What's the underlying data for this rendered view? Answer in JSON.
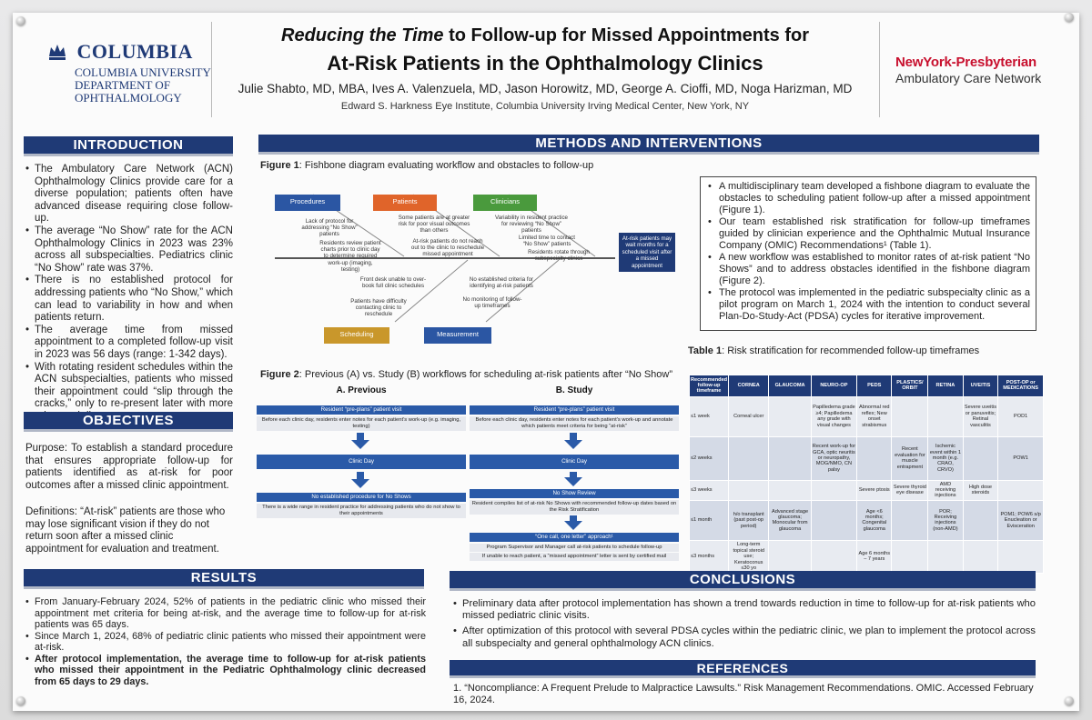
{
  "header": {
    "logo_wordmark": "COLUMBIA",
    "logo_sub": [
      "COLUMBIA UNIVERSITY",
      "DEPARTMENT OF",
      "OPHTHALMOLOGY"
    ],
    "title_line1_italic": "Reducing the Time",
    "title_line1_rest": " to Follow-up for Missed Appointments for",
    "title_line2": "At-Risk Patients in the Ophthalmology Clinics",
    "authors": "Julie Shabto, MD, MBA,  Ives A. Valenzuela, MD, Jason Horowitz, MD, George A. Cioffi, MD, Noga Harizman, MD",
    "affiliation": "Edward S. Harkness Eye Institute, Columbia University Irving Medical Center, New York, NY",
    "partner_name": "NewYork-Presbyterian",
    "partner_sub": "Ambulatory Care Network"
  },
  "introduction": {
    "heading": "INTRODUCTION",
    "bullets": [
      "The Ambulatory Care Network (ACN) Ophthalmology Clinics provide care for a diverse population; patients often have advanced disease requiring close follow-up.",
      "The average “No Show” rate for the ACN Ophthalmology Clinics in 2023 was 23% across all subspecialties. Pediatrics clinic “No Show” rate was 37%.",
      "There is no established protocol for addressing patients who “No Show,” which can lead to variability in how and when patients return.",
      "The average time from missed appointment to a completed follow-up visit in 2023 was 56 days (range: 1-342 days).",
      "With rotating resident schedules within the ACN subspecialties, patients who missed their appointment could “slip through the cracks,” only to re-present later with more advanced disease."
    ]
  },
  "objectives": {
    "heading": "OBJECTIVES",
    "purpose": "Purpose: To establish a standard procedure that ensures appropriate follow-up for patients identified as at-risk for poor outcomes after a missed clinic appointment.",
    "definitions": "Definitions: “At-risk” patients are those who may lose significant vision if they do not return soon after a missed clinic appointment for evaluation and treatment."
  },
  "results": {
    "heading": "RESULTS",
    "bullets": [
      "From January-February 2024, 52% of patients in the pediatric clinic who missed their appointment met criteria for being at-risk, and the average time to follow-up for at-risk patients was 65 days.",
      "Since March 1, 2024, 68% of pediatric clinic patients who missed their appointment were at-risk."
    ],
    "bold_bullet": "After protocol implementation, the average time to follow-up for at-risk patients who missed their appointment in the Pediatric Ophthalmology clinic decreased from 65 days to 29 days."
  },
  "methods": {
    "heading": "METHODS AND INTERVENTIONS",
    "fig1_label": "Figure 1",
    "fig1_caption": ": Fishbone diagram evaluating workflow and obstacles to follow-up",
    "fishbone": {
      "categories": [
        "Procedures",
        "Patients",
        "Clinicians",
        "Scheduling",
        "Measurement"
      ],
      "notes": [
        "Lack of protocol for addressing “No Show” patients",
        "Residents review patient charts prior to clinic day to determine required work-up (imaging, testing)",
        "Some patients are at greater risk for poor visual outcomes than others",
        "At-risk patients do not reach out to the clinic to reschedule missed appointment",
        "Variability in resident practice for reviewing “No Show” patients",
        "Limited time to contact “No Show” patients",
        "Residents rotate through subspecialty clinics",
        "Front desk unable to over-book full clinic schedules",
        "Patients have difficulty contacting clinic to reschedule",
        "No established criteria for identifying at-risk patients",
        "No monitoring of follow-up timeframes"
      ],
      "outcome": "At-risk patients may wait months for a scheduled visit after a missed appointment"
    },
    "bullets": [
      "A multidisciplinary team developed a fishbone diagram to evaluate the obstacles to scheduling patient follow-up after a missed appointment (Figure 1).",
      "Our team established risk stratification for follow-up timeframes guided by clinician experience and the Ophthalmic Mutual Insurance Company (OMIC) Recommendations¹ (Table 1).",
      "A new workflow was established to monitor rates of at-risk patient “No Shows” and to address obstacles identified in the fishbone diagram (Figure 2).",
      "The protocol was implemented in the pediatric subspecialty clinic as a pilot program on March 1, 2024 with the intention to conduct several Plan-Do-Study-Act (PDSA) cycles for iterative improvement."
    ],
    "fig2_label": "Figure 2",
    "fig2_caption": ": Previous (A) vs. Study (B) workflows for scheduling at-risk patients after “No Show”",
    "flow_a": {
      "heading": "A. Previous",
      "step1": "Resident “pre-plans” patient visit",
      "note1": "Before each clinic day, residents enter notes for each patient’s work-up (e.g. imaging, testing)",
      "step2": "Clinic Day",
      "step3": "No established procedure for No Shows",
      "note3": "There is a wide range in resident practice for addressing patients who do not show to their appointments"
    },
    "flow_b": {
      "heading": "B. Study",
      "step1": "Resident “pre-plans” patient visit",
      "note1": "Before each clinic day, residents enter notes for each patient’s work-up and annotate which patients meet criteria for being “at-risk”",
      "step2": "Clinic Day",
      "step3": "No Show Review",
      "note3": "Resident compiles list of at-risk No Shows with recommended follow-up dates based on the Risk Stratification",
      "step4": "“One call, one letter” approach¹",
      "note4a": "Program Supervisor and Manager call at-risk patients to schedule follow-up",
      "note4b": "If unable to reach patient, a “missed appointment” letter is sent by certified mail"
    },
    "table1_label": "Table 1",
    "table1_caption": ": Risk stratification for recommended follow-up timeframes",
    "table": {
      "headers": [
        "Recommended follow-up timeframe",
        "CORNEA",
        "GLAUCOMA",
        "NEURO-OP",
        "PEDS",
        "PLASTICS/ ORBIT",
        "RETINA",
        "UVEITIS",
        "POST-OP or MEDICATIONS"
      ],
      "rows": [
        [
          "≤1 week",
          "Corneal ulcer",
          "",
          "Papilledema grade ≥4; Papilledema any grade with visual changes",
          "Abnormal red reflex; New onset strabismus",
          "",
          "",
          "Severe uveitis or panuveitis; Retinal vasculitis",
          "POD1"
        ],
        [
          "≤2 weeks",
          "",
          "",
          "Recent work-up for GCA, optic neuritis or neuropathy, MOG/NMO, CN palsy",
          "",
          "Recent evaluation for muscle entrapment",
          "Ischemic event within 1 month (e.g. CRAO, CRVO)",
          "",
          "POW1"
        ],
        [
          "≤3 weeks",
          "",
          "",
          "",
          "Severe ptosis",
          "Severe thyroid eye disease",
          "AMD receiving injections",
          "High dose steroids",
          ""
        ],
        [
          "≤1 month",
          "h/o transplant (past post-op period)",
          "Advanced stage glaucoma; Monocular from glaucoma",
          "",
          "Age <6 months; Congenital glaucoma",
          "",
          "POR; Receiving injections (non-AMD)",
          "",
          "POM1; POW6 s/p Enucleation or Evisceration"
        ],
        [
          "≤3 months",
          "Long-term topical steroid use; Keratoconus ≤30 yo",
          "",
          "",
          "Age 6 months – 7 years",
          "",
          "",
          "",
          ""
        ]
      ]
    }
  },
  "conclusions": {
    "heading": "CONCLUSIONS",
    "bullets": [
      "Preliminary data after protocol implementation has shown a trend towards reduction in time to follow-up for at-risk patients who missed pediatric clinic visits.",
      "After optimization of this protocol with several PDSA cycles within the pediatric clinic, we plan to implement the protocol across all subspecialty and general ophthalmology ACN clinics."
    ]
  },
  "references": {
    "heading": "REFERENCES",
    "items": [
      "1. “Noncompliance: A Frequent Prelude to Malpractice Lawsults.” Risk Management Recommendations. OMIC. Accessed February 16, 2024."
    ]
  },
  "colors": {
    "navy": "#1f3a76",
    "procedures": "#2b56a3",
    "patients": "#e0642a",
    "clinicians": "#4a9a3d",
    "scheduling": "#c9972b",
    "measurement": "#2b56a3",
    "nyp_red": "#c8102e"
  }
}
